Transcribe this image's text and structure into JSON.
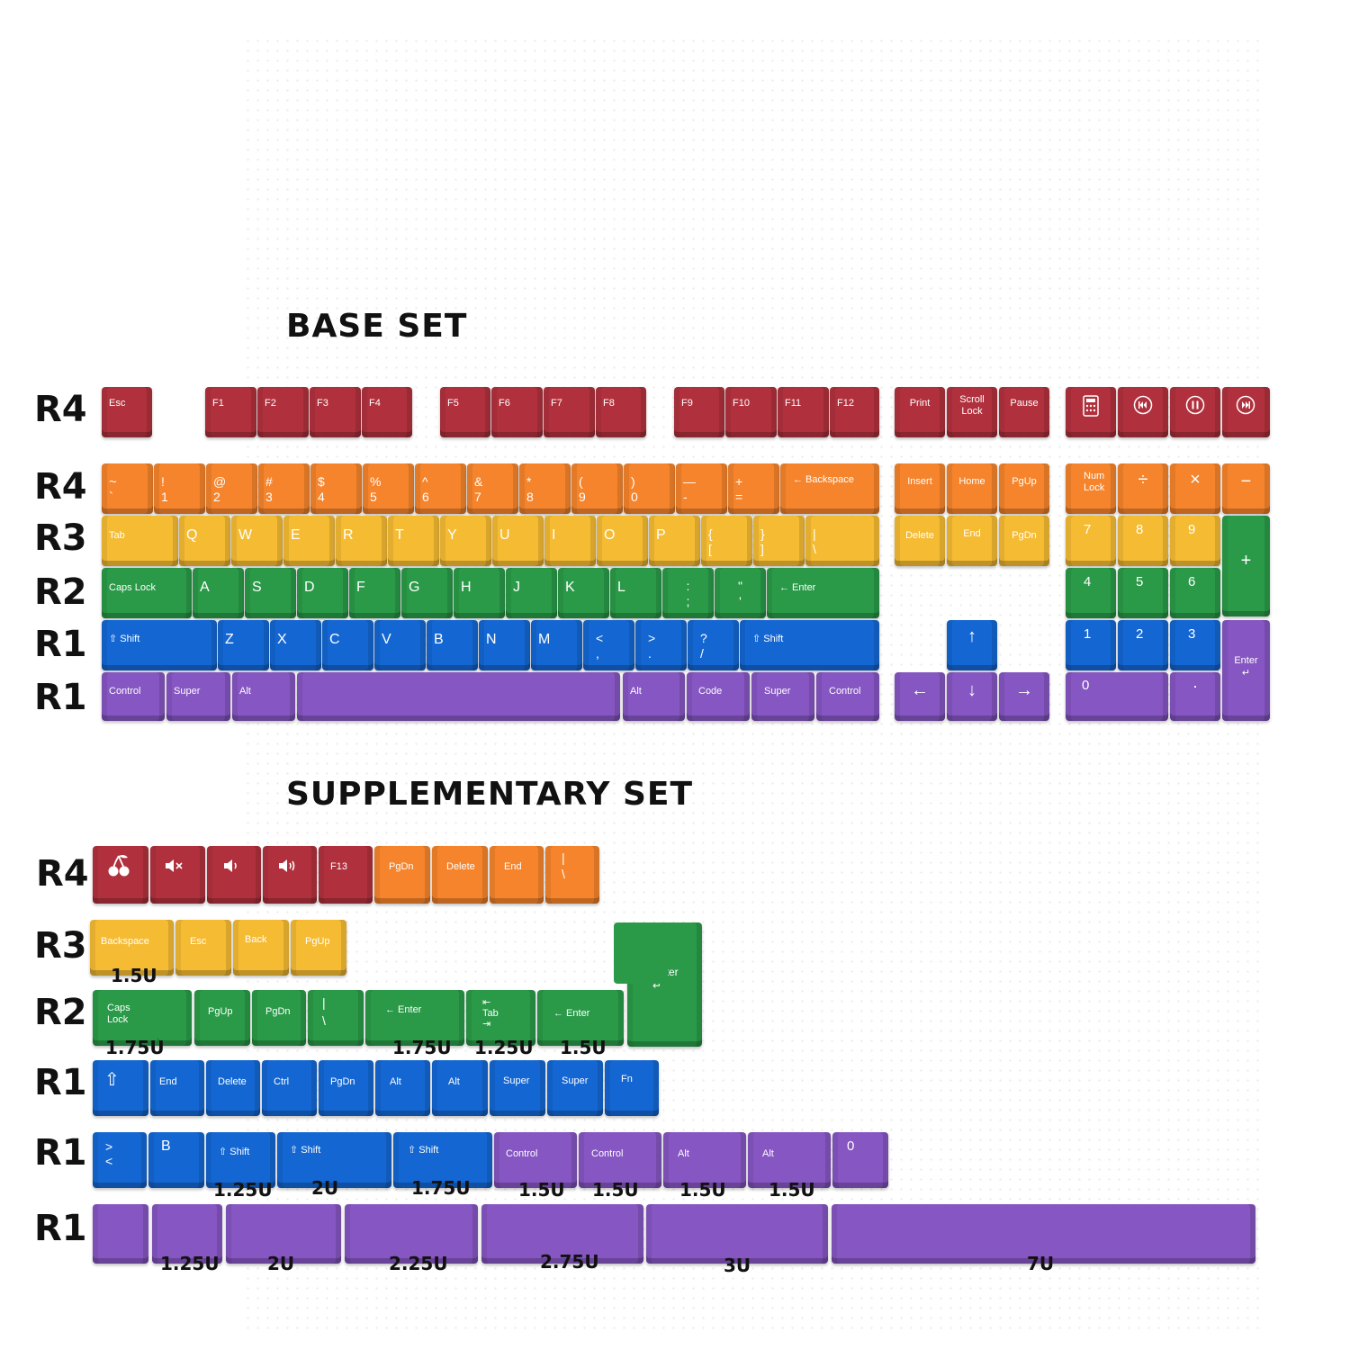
{
  "colors": {
    "red": "#b0313d",
    "orange": "#f5842c",
    "yellow": "#f5bb33",
    "green": "#2a9a48",
    "blue": "#1467d2",
    "purple": "#8656c2"
  },
  "base_set": {
    "title": "BASE SET",
    "row_labels": [
      "R4",
      "R4",
      "R3",
      "R2",
      "R1",
      "R1"
    ],
    "fn_row": [
      "Esc",
      "F1",
      "F2",
      "F3",
      "F4",
      "F5",
      "F6",
      "F7",
      "F8",
      "F9",
      "F10",
      "F11",
      "F12",
      "Print",
      "Scroll\nLock",
      "Pause"
    ],
    "media_icons": [
      "calculator-icon",
      "previous-track-icon",
      "pause-icon",
      "next-track-icon"
    ],
    "number_row": [
      "~\n`",
      "!\n1",
      "@\n2",
      "#\n3",
      "$\n4",
      "%\n5",
      "^\n6",
      "&\n7",
      "*\n8",
      "(\n9",
      ")\n0",
      "—\n-",
      "+\n=",
      "← Backspace"
    ],
    "qwerty_row": [
      "Tab",
      "Q",
      "W",
      "E",
      "R",
      "T",
      "Y",
      "U",
      "I",
      "O",
      "P",
      "{\n[",
      "}\n]",
      "|\n\\"
    ],
    "home_row": [
      "Caps Lock",
      "A",
      "S",
      "D",
      "F",
      "G",
      "H",
      "J",
      "K",
      "L",
      ":\n;",
      "\"\n'",
      "← Enter"
    ],
    "shift_row": [
      "⇧ Shift",
      "Z",
      "X",
      "C",
      "V",
      "B",
      "N",
      "M",
      "<\n,",
      ">\n.",
      "?\n/",
      "⇧ Shift"
    ],
    "bottom_row": [
      "Control",
      "Super",
      "Alt",
      "",
      "Alt",
      "Code",
      "Super",
      "Control"
    ],
    "nav_top": [
      "Insert",
      "Home",
      "PgUp"
    ],
    "nav_mid": [
      "Delete",
      "End",
      "PgDn"
    ],
    "arrows": [
      "↑",
      "←",
      "↓",
      "→"
    ],
    "numpad_row1": [
      "Num\nLock",
      "÷",
      "×",
      "−"
    ],
    "numpad_row2": [
      "7",
      "8",
      "9",
      "+"
    ],
    "numpad_row3": [
      "4",
      "5",
      "6"
    ],
    "numpad_row4": [
      "1",
      "2",
      "3",
      "Enter\n↵"
    ],
    "numpad_row5": [
      "0",
      "."
    ]
  },
  "supplementary_set": {
    "title": "SUPPLEMENTARY SET",
    "row_labels": [
      "R4",
      "R3",
      "R2",
      "R1",
      "R1",
      "R1"
    ],
    "row_r4": [
      "cherry-icon",
      "mute-icon",
      "volume-down-icon",
      "volume-up-icon",
      "F13",
      "PgDn",
      "Delete",
      "End",
      "|\n\\"
    ],
    "row_r3": [
      "Backspace",
      "Esc",
      "Back",
      "PgUp"
    ],
    "row_r3_sizes": [
      "1.5U"
    ],
    "iso_enter": "Enter\n↵",
    "row_r2": [
      "Caps\nLock",
      "",
      "PgUp",
      "PgDn",
      "|\n\\",
      "← Enter",
      "⇤\nTab\n⇥",
      "← Enter"
    ],
    "row_r2_sizes": [
      "1.75U",
      "1.75U",
      "1.25U",
      "1.5U"
    ],
    "row_r1a": [
      "⇧",
      "End",
      "Delete",
      "Ctrl",
      "PgDn",
      "Alt",
      "Alt",
      "Super",
      "Super",
      "Fn"
    ],
    "row_r1b": [
      ">\n<",
      "B",
      "⇧ Shift",
      "⇧ Shift",
      "⇧ Shift",
      "Control",
      "Control",
      "Alt",
      "Alt",
      "0"
    ],
    "row_r1b_sizes": [
      "1.25U",
      "2U",
      "1.75U",
      "1.5U",
      "1.5U",
      "1.5U",
      "1.5U"
    ],
    "row_r1c_sizes": [
      "1.25U",
      "2U",
      "2.25U",
      "2.75U",
      "3U",
      "7U"
    ]
  }
}
